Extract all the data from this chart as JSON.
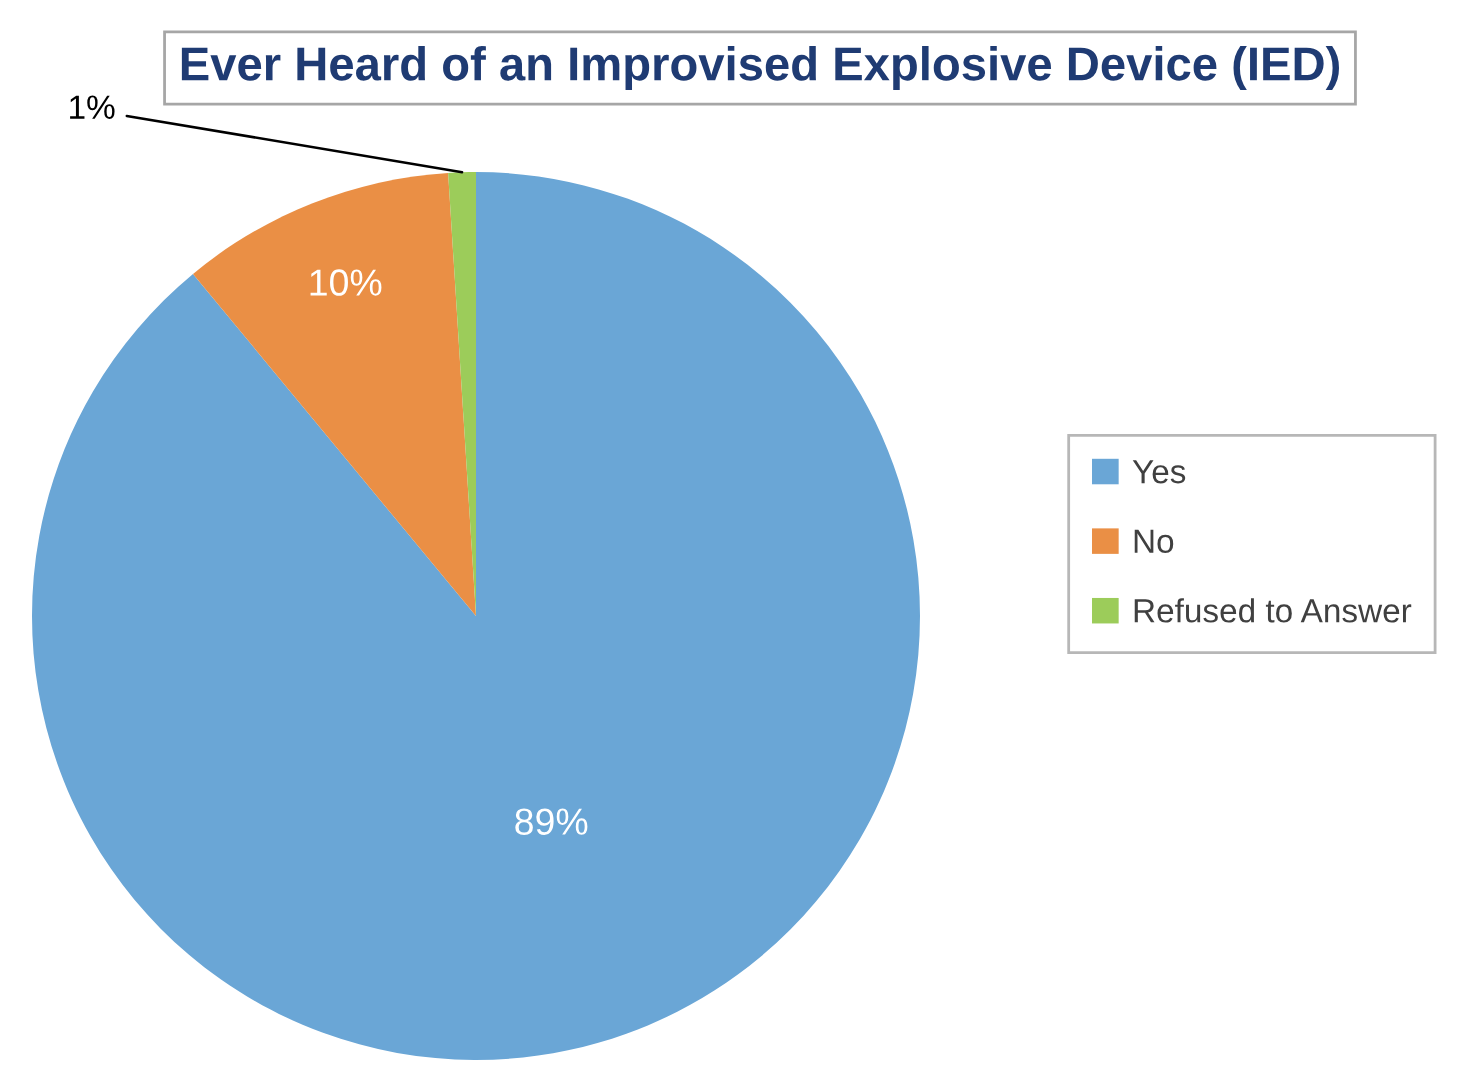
{
  "chart_data": {
    "type": "pie",
    "title": "Ever Heard of an Improvised Explosive Device (IED)",
    "categories": [
      "Yes",
      "No",
      "Refused to Answer"
    ],
    "values": [
      89,
      10,
      1
    ],
    "colors": [
      "#6aa6d6",
      "#ea8f45",
      "#9ccc5a"
    ],
    "value_labels": [
      "89%",
      "10%",
      "1%"
    ],
    "legend": "right"
  }
}
